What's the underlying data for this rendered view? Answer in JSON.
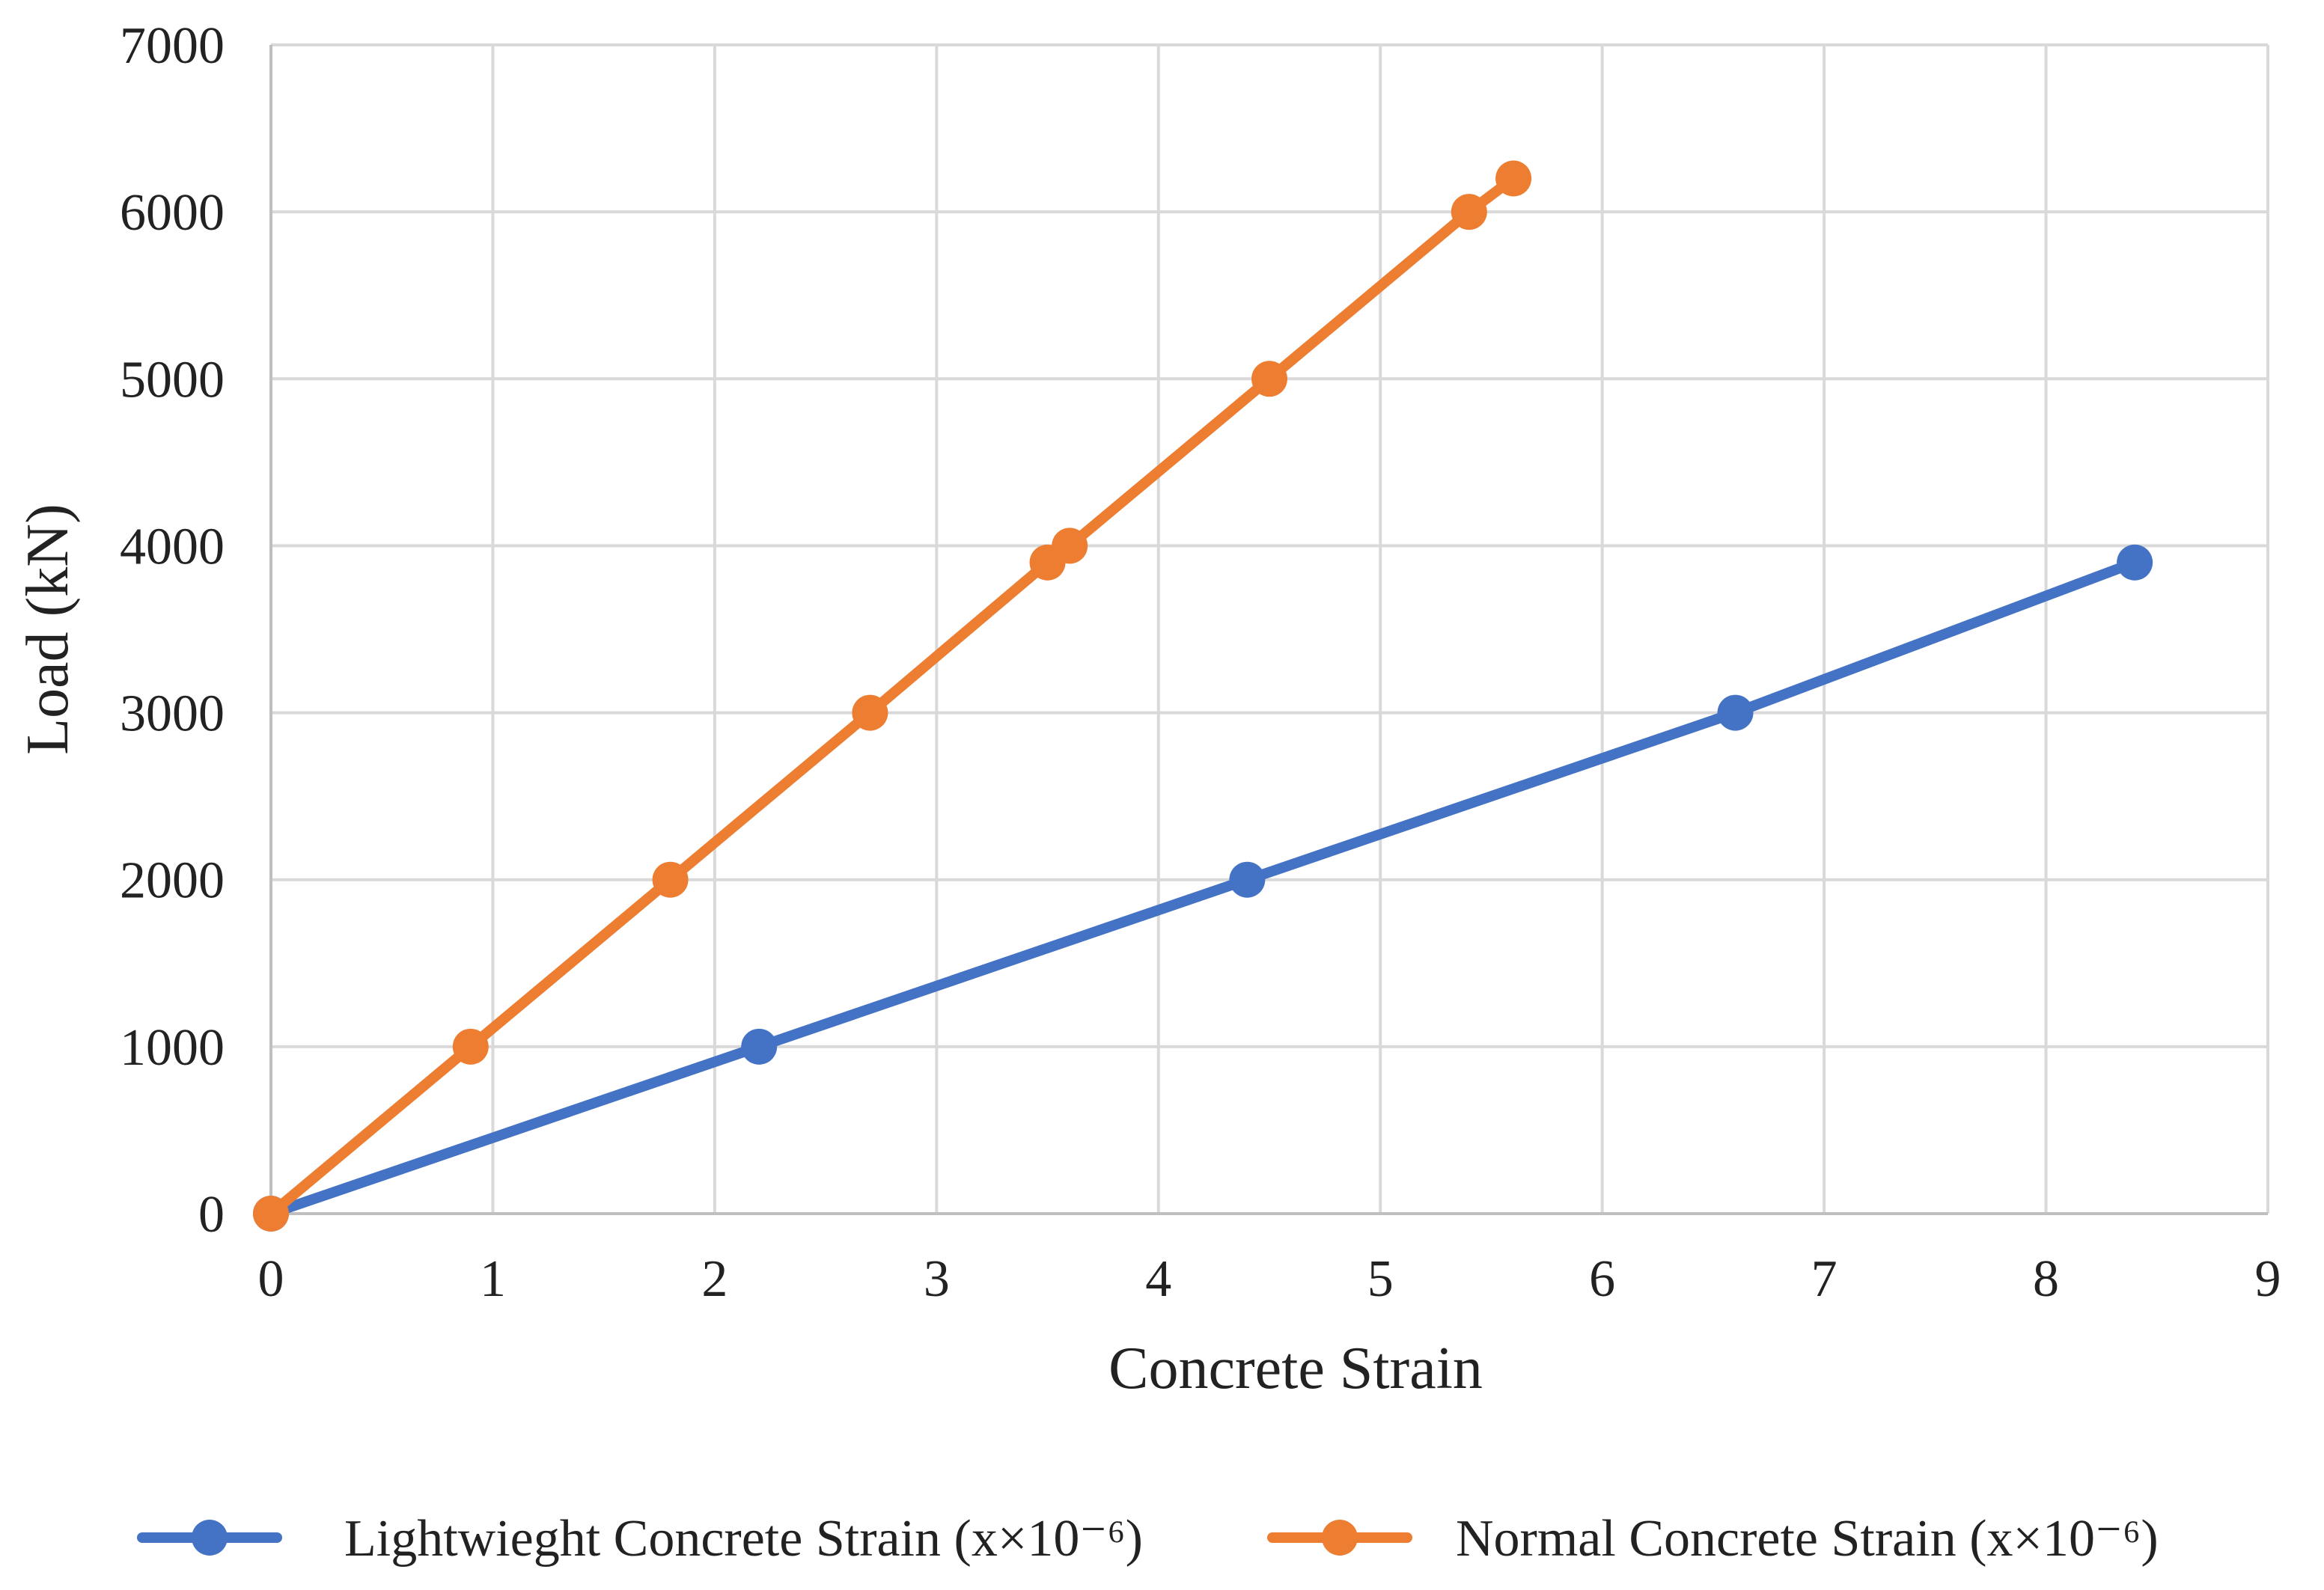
{
  "chart_data": {
    "type": "line",
    "xlabel": "Concrete Strain",
    "ylabel": "Load (kN)",
    "xlim": [
      0,
      9
    ],
    "ylim": [
      0,
      7000
    ],
    "x_ticks": [
      0,
      1,
      2,
      3,
      4,
      5,
      6,
      7,
      8,
      9
    ],
    "y_ticks": [
      0,
      1000,
      2000,
      3000,
      4000,
      5000,
      6000,
      7000
    ],
    "grid": true,
    "legend_position": "bottom",
    "series": [
      {
        "name": "Lightwieght Concrete Strain (x×10⁻⁶)",
        "color": "#4472C4",
        "marker": "circle",
        "x": [
          0,
          2.2,
          4.4,
          6.6,
          8.4
        ],
        "y": [
          0,
          1000,
          2000,
          3000,
          3900
        ]
      },
      {
        "name": "Normal Concrete Strain (x×10⁻⁶)",
        "color": "#ED7D31",
        "marker": "circle",
        "x": [
          0,
          0.9,
          1.8,
          2.7,
          3.5,
          3.6,
          4.5,
          5.4,
          5.6
        ],
        "y": [
          0,
          1000,
          2000,
          3000,
          3900,
          4000,
          5000,
          6000,
          6200
        ]
      }
    ]
  }
}
